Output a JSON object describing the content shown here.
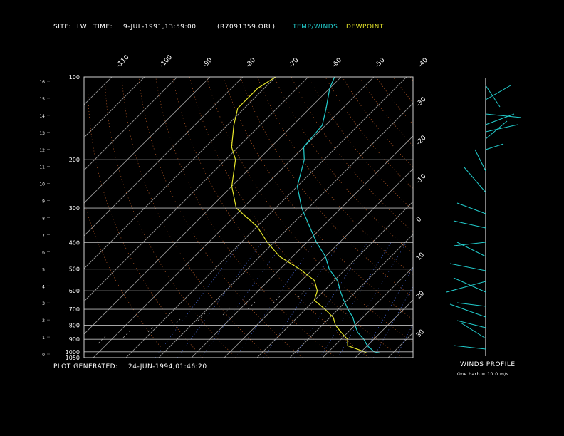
{
  "header": {
    "site_label": "SITE:",
    "site_value": "LWL",
    "time_label": "TIME:",
    "time_value": "9-JUL-1991,13:59:00",
    "file_name": "(R7091359.ORL)",
    "legend_temp": "TEMP/WINDS",
    "legend_dew": "DEWPOINT",
    "legend_temp_color": "#22cccc",
    "legend_dew_color": "#e8e82a"
  },
  "footer": {
    "generated_label": "PLOT GENERATED:",
    "generated_value": "24-JUN-1994,01:46:20"
  },
  "winds_panel": {
    "title": "WINDS PROFILE",
    "note": "One barb = 10.0 m/s"
  },
  "chart_data": {
    "type": "line",
    "title": "",
    "xlabel": "",
    "ylabel": "",
    "scale": "skew-T log-p",
    "pressure_ticks": [
      100,
      200,
      300,
      400,
      500,
      600,
      700,
      800,
      900,
      1000,
      1050
    ],
    "height_ticks_km": [
      16,
      15,
      14,
      13,
      12,
      11,
      10,
      9,
      8,
      7,
      6,
      5,
      4,
      3,
      2,
      1,
      0
    ],
    "isotherm_labels_top": [
      -110,
      -100,
      -90,
      -80,
      -70,
      -60,
      -50,
      -40
    ],
    "isotherm_labels_right": [
      -30,
      -20,
      -10,
      0,
      10,
      20,
      30
    ],
    "pressure_range_hpa": [
      100,
      1050
    ],
    "series": [
      {
        "name": "TEMP/WINDS",
        "color": "#22cccc",
        "p": [
          1010,
          1000,
          950,
          900,
          850,
          800,
          750,
          700,
          650,
          600,
          550,
          500,
          450,
          400,
          350,
          300,
          250,
          200,
          180,
          150,
          130,
          110,
          100
        ],
        "t": [
          26,
          24,
          20,
          17,
          13,
          10,
          7,
          3,
          -1,
          -5,
          -9,
          -15,
          -20,
          -27,
          -34,
          -42,
          -50,
          -56,
          -60,
          -61,
          -65,
          -70,
          -72
        ]
      },
      {
        "name": "DEWPOINT",
        "color": "#e8e82a",
        "p": [
          1010,
          1000,
          950,
          900,
          850,
          800,
          750,
          700,
          650,
          600,
          550,
          500,
          450,
          400,
          350,
          300,
          250,
          200,
          180,
          150,
          130,
          110,
          100
        ],
        "t": [
          22,
          21,
          14,
          12,
          8,
          4,
          1,
          -4,
          -10,
          -12,
          -16,
          -24,
          -34,
          -42,
          -50,
          -62,
          -70,
          -77,
          -82,
          -88,
          -92,
          -92,
          -90
        ]
      }
    ]
  }
}
